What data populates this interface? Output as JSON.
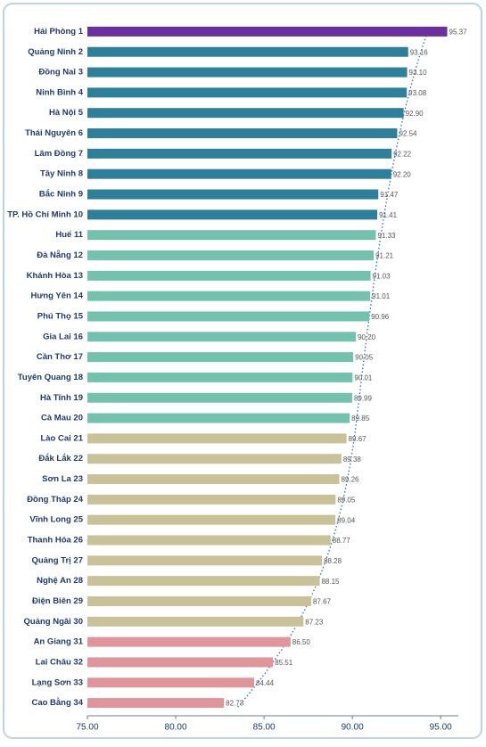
{
  "chart_data": {
    "type": "barh",
    "categories": [
      "Hải Phòng 1",
      "Quảng Ninh 2",
      "Đồng Nai 3",
      "Ninh Bình 4",
      "Hà Nội 5",
      "Thái Nguyên 6",
      "Lâm Đồng 7",
      "Tây Ninh 8",
      "Bắc Ninh 9",
      "TP. Hồ Chí Minh 10",
      "Huế 11",
      "Đà Nẵng 12",
      "Khánh Hòa 13",
      "Hưng Yên 14",
      "Phú Thọ 15",
      "Gia Lai 16",
      "Cần Thơ 17",
      "Tuyên Quang 18",
      "Hà Tĩnh 19",
      "Cà Mau 20",
      "Lào Cai 21",
      "Đắk Lắk 22",
      "Sơn La 23",
      "Đồng Tháp 24",
      "Vĩnh Long 25",
      "Thanh Hóa 26",
      "Quảng Trị 27",
      "Nghệ An 28",
      "Điện Biên 29",
      "Quảng Ngãi 30",
      "An Giang 31",
      "Lai Châu 32",
      "Lạng Sơn 33",
      "Cao Bằng 34"
    ],
    "values": [
      95.37,
      93.16,
      93.1,
      93.08,
      92.9,
      92.54,
      92.22,
      92.2,
      91.47,
      91.41,
      91.33,
      91.21,
      91.03,
      91.01,
      90.96,
      90.2,
      90.05,
      90.01,
      89.99,
      89.85,
      89.67,
      89.38,
      89.26,
      89.05,
      89.04,
      88.77,
      88.28,
      88.15,
      87.67,
      87.23,
      86.5,
      85.51,
      84.44,
      82.73
    ],
    "value_labels": [
      "95.37",
      "93.16",
      "93.10",
      "93.08",
      "92.90",
      "92.54",
      "92.22",
      "92.20",
      "91.47",
      "91.41",
      "91.33",
      "91.21",
      "91.03",
      "91.01",
      "90.96",
      "90.20",
      "90.05",
      "90.01",
      "89.99",
      "89.85",
      "89.67",
      "89.38",
      "89.26",
      "89.05",
      "89.04",
      "88.77",
      "88.28",
      "88.15",
      "87.67",
      "87.23",
      "86.50",
      "85.51",
      "84.44",
      "82.73"
    ],
    "colors": [
      "#6b2f9f",
      "#2e7f99",
      "#2e7f99",
      "#2e7f99",
      "#2e7f99",
      "#2e7f99",
      "#2e7f99",
      "#2e7f99",
      "#2e7f99",
      "#2e7f99",
      "#72c2ae",
      "#72c2ae",
      "#72c2ae",
      "#72c2ae",
      "#72c2ae",
      "#72c2ae",
      "#72c2ae",
      "#72c2ae",
      "#72c2ae",
      "#72c2ae",
      "#c9c198",
      "#c9c198",
      "#c9c198",
      "#c9c198",
      "#c9c198",
      "#c9c198",
      "#c9c198",
      "#c9c198",
      "#c9c198",
      "#c9c198",
      "#e0959a",
      "#e0959a",
      "#e0959a",
      "#e0959a"
    ],
    "xlim": [
      75,
      96
    ],
    "xticks": [
      {
        "value": 75,
        "label": "75.00"
      },
      {
        "value": 80,
        "label": "80.00"
      },
      {
        "value": 85,
        "label": "85.00"
      },
      {
        "value": 90,
        "label": "90.00"
      },
      {
        "value": 95,
        "label": "95.00"
      }
    ]
  }
}
